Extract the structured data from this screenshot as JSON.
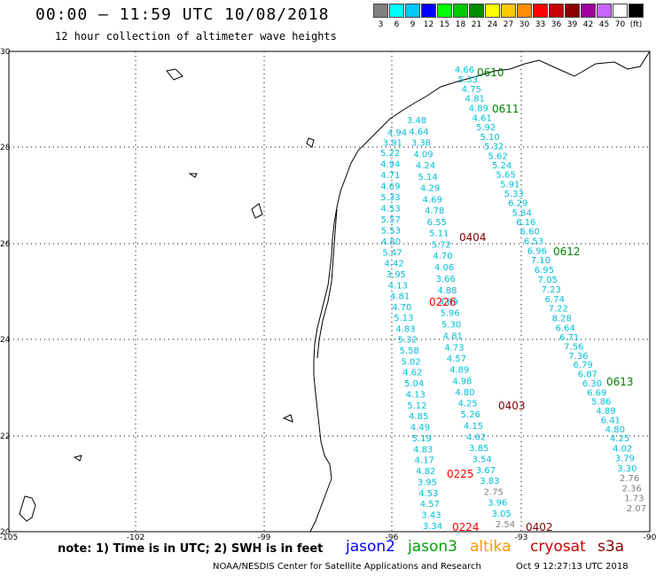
{
  "header": {
    "title": "00:00 – 11:59 UTC 10/08/2018",
    "subtitle": "12 hour collection of altimeter wave heights"
  },
  "color_scale": {
    "unit": "(ft)",
    "colors": [
      "#808080",
      "#00ffff",
      "#00c8ff",
      "#0000ff",
      "#00ff00",
      "#00c800",
      "#008c00",
      "#ffff00",
      "#ffc800",
      "#ff8c00",
      "#ff0000",
      "#c80000",
      "#8c0000",
      "#a000a0",
      "#c864ff",
      "#ffffff",
      "#000000"
    ],
    "labels": [
      "3",
      "6",
      "9",
      "12",
      "15",
      "18",
      "21",
      "24",
      "27",
      "30",
      "33",
      "36",
      "39",
      "42",
      "45",
      "70",
      "(ft)"
    ]
  },
  "axes": {
    "lat_labels": [
      "30",
      "28",
      "26",
      "24",
      "22",
      "20"
    ],
    "lon_labels": [
      "-105",
      "-102",
      "-99",
      "-96",
      "-93",
      "-90"
    ]
  },
  "passes": [
    {
      "label": "0610",
      "color": "#008000"
    },
    {
      "label": "0611",
      "color": "#008000"
    },
    {
      "label": "0612",
      "color": "#008000"
    },
    {
      "label": "0613",
      "color": "#008000"
    },
    {
      "label": "0404",
      "color": "#800000"
    },
    {
      "label": "0403",
      "color": "#800000"
    },
    {
      "label": "0402",
      "color": "#800000"
    },
    {
      "label": "0226",
      "color": "#ff0000"
    },
    {
      "label": "0225",
      "color": "#ff0000"
    },
    {
      "label": "0224",
      "color": "#ff0000"
    }
  ],
  "tracks": [
    {
      "name": "track-a",
      "values": [
        "4.94",
        "3.91",
        "5.22",
        "4.94",
        "4.71",
        "4.69",
        "5.33",
        "4.53",
        "5.57",
        "5.53",
        "4.80",
        "5.47",
        "4.42",
        "3.95",
        "4.13",
        "4.81",
        "4.70",
        "5.13",
        "4.83",
        "5.32",
        "5.58",
        "5.02",
        "4.62",
        "5.04",
        "4.13",
        "5.12",
        "4.85",
        "4.49",
        "5.19",
        "4.83",
        "4.17",
        "4.82",
        "3.95",
        "4.53",
        "4.57",
        "3.43",
        "3.34"
      ]
    },
    {
      "name": "track-b",
      "values": [
        "3.48",
        "4.64",
        "3.38",
        "4.09",
        "4.24",
        "5.14",
        "4.29",
        "4.69",
        "4.78",
        "6.55",
        "5.11",
        "5.72",
        "4.70",
        "4.06",
        "3.66",
        "4.88",
        "4.89",
        "5.96",
        "5.30",
        "4.81",
        "4.73",
        "4.57",
        "4.89",
        "4.98",
        "4.80",
        "4.25",
        "5.26",
        "4.15",
        "4.62",
        "3.85",
        "3.54",
        "3.67",
        "3.83",
        "2.75",
        "3.96",
        "3.05",
        "2.54"
      ]
    },
    {
      "name": "track-c",
      "values": [
        "4.66",
        "5.33",
        "4.75",
        "4.81",
        "4.89",
        "4.61",
        "5.92",
        "5.10",
        "5.32",
        "5.62",
        "5.24",
        "5.65",
        "5.91",
        "5.33",
        "6.29",
        "5.84",
        "6.16",
        "6.60",
        "6.53",
        "6.96",
        "7.10",
        "6.95",
        "7.05",
        "7.23",
        "6.74",
        "7.22",
        "8.28",
        "6.64",
        "6.71",
        "7.56",
        "7.36",
        "6.79",
        "6.87",
        "6.30",
        "6.69",
        "5.86",
        "4.89",
        "6.41",
        "4.80",
        "4.25",
        "4.02",
        "3.79",
        "3.30",
        "2.76",
        "2.36",
        "1.73",
        "2.07"
      ]
    }
  ],
  "footer": {
    "note": "note: 1) Time is in UTC; 2) SWH is in feet",
    "missions": [
      {
        "name": "jason2",
        "color": "#0000ff"
      },
      {
        "name": "jason3",
        "color": "#00a000"
      },
      {
        "name": "altika",
        "color": "#ff9900"
      },
      {
        "name": "cryosat",
        "color": "#cc0000"
      },
      {
        "name": "s3a",
        "color": "#8b0000"
      }
    ],
    "credit": "NOAA/NESDIS Center for Satellite Applications and Research",
    "timestamp": "Oct  9 12:27:13 UTC 2018"
  }
}
